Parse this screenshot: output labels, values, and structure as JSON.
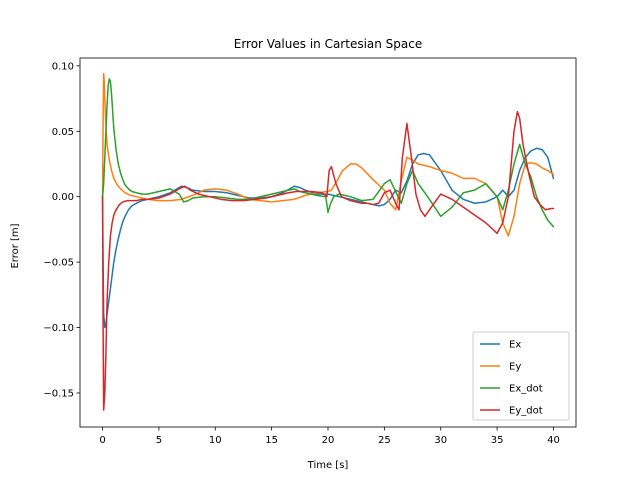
{
  "chart_data": {
    "type": "line",
    "title": "Error Values in Cartesian Space",
    "xlabel": "Time [s]",
    "ylabel": "Error [m]",
    "xlim": [
      -2,
      42
    ],
    "ylim": [
      -0.176,
      0.106
    ],
    "xticks": [
      0,
      5,
      10,
      15,
      20,
      25,
      30,
      35,
      40
    ],
    "xtick_labels": [
      "0",
      "5",
      "10",
      "15",
      "20",
      "25",
      "30",
      "35",
      "40"
    ],
    "yticks": [
      0.1,
      0.05,
      0.0,
      -0.05,
      -0.1,
      -0.15
    ],
    "ytick_labels": [
      "0.10",
      "0.05",
      "0.00",
      "−0.05",
      "−0.10",
      "−0.15"
    ],
    "grid": false,
    "legend_position": "bottom-right",
    "series": [
      {
        "name": "Ex",
        "color": "#1f77b4",
        "x": [
          0,
          0.05,
          0.1,
          0.2,
          0.3,
          0.4,
          0.55,
          0.7,
          0.85,
          1.0,
          1.2,
          1.4,
          1.6,
          1.8,
          2.0,
          2.3,
          2.6,
          3.0,
          3.5,
          4.0,
          5.0,
          6.0,
          7.0,
          7.5,
          8.0,
          9.0,
          10,
          11,
          12,
          13,
          14,
          15,
          16,
          17,
          17.5,
          18,
          19,
          20,
          21,
          22,
          23,
          24,
          24.5,
          25,
          25.5,
          26,
          26.5,
          27,
          27.5,
          28,
          28.5,
          29,
          29.5,
          30,
          31,
          32,
          33,
          34,
          35,
          35.5,
          36,
          36.5,
          37,
          37.5,
          38,
          38.5,
          39,
          39.5,
          40
        ],
        "y": [
          0.0,
          -0.05,
          -0.09,
          -0.1,
          -0.097,
          -0.09,
          -0.08,
          -0.07,
          -0.06,
          -0.05,
          -0.04,
          -0.032,
          -0.025,
          -0.019,
          -0.015,
          -0.01,
          -0.007,
          -0.005,
          -0.003,
          -0.002,
          0.0,
          0.003,
          0.008,
          0.007,
          0.005,
          0.004,
          0.004,
          0.003,
          0.001,
          -0.001,
          -0.001,
          0.0,
          0.003,
          0.008,
          0.007,
          0.005,
          0.002,
          0.002,
          0.0,
          -0.002,
          -0.004,
          -0.006,
          -0.007,
          -0.006,
          -0.002,
          0.005,
          0.003,
          0.012,
          0.025,
          0.032,
          0.033,
          0.032,
          0.026,
          0.02,
          0.005,
          -0.002,
          -0.005,
          -0.004,
          0.0,
          0.005,
          0.0,
          0.005,
          0.02,
          0.03,
          0.035,
          0.037,
          0.036,
          0.03,
          0.014
        ]
      },
      {
        "name": "Ey",
        "color": "#ff7f0e",
        "x": [
          0,
          0.05,
          0.1,
          0.15,
          0.2,
          0.3,
          0.4,
          0.6,
          0.8,
          1.0,
          1.3,
          1.6,
          2.0,
          2.5,
          3.0,
          4.0,
          5.0,
          6.0,
          7.0,
          8.0,
          9.0,
          10,
          11,
          12,
          13,
          14,
          15,
          16,
          17,
          18,
          19,
          20,
          20.3,
          20.8,
          21.3,
          22,
          22.5,
          23,
          24,
          25,
          25.5,
          26,
          26.5,
          27,
          27.5,
          28,
          29,
          30,
          31,
          32,
          33,
          34,
          35,
          35.5,
          36,
          36.5,
          37,
          37.5,
          38,
          38.5,
          39,
          39.5,
          40
        ],
        "y": [
          0.0,
          0.06,
          0.094,
          0.088,
          0.075,
          0.055,
          0.04,
          0.028,
          0.02,
          0.014,
          0.009,
          0.006,
          0.003,
          0.001,
          0.0,
          -0.002,
          -0.003,
          -0.003,
          -0.002,
          0.001,
          0.005,
          0.006,
          0.005,
          0.002,
          -0.002,
          -0.003,
          -0.004,
          -0.003,
          -0.002,
          0.001,
          0.003,
          0.004,
          0.005,
          0.012,
          0.02,
          0.025,
          0.025,
          0.022,
          0.013,
          0.005,
          -0.005,
          -0.01,
          0.012,
          0.03,
          0.028,
          0.025,
          0.023,
          0.02,
          0.018,
          0.014,
          0.014,
          0.01,
          0.0,
          -0.02,
          -0.03,
          -0.015,
          0.01,
          0.025,
          0.026,
          0.025,
          0.022,
          0.02,
          0.017
        ]
      },
      {
        "name": "Ex_dot",
        "color": "#2ca02c",
        "x": [
          0,
          0.1,
          0.2,
          0.3,
          0.4,
          0.5,
          0.6,
          0.7,
          0.8,
          0.9,
          1.0,
          1.2,
          1.4,
          1.6,
          1.8,
          2.0,
          2.3,
          2.6,
          3.0,
          3.5,
          4.0,
          5.0,
          6.0,
          6.8,
          7.2,
          7.6,
          8.0,
          9.0,
          10,
          11,
          12,
          13,
          14,
          15,
          16,
          17,
          17.5,
          18,
          19,
          19.8,
          20,
          20.2,
          20.5,
          21,
          22,
          23,
          24,
          25,
          25.5,
          26,
          26.5,
          27,
          27.5,
          28,
          29,
          30,
          31,
          32,
          33,
          34,
          35,
          35.5,
          36,
          36.5,
          37,
          37.5,
          38,
          38.5,
          39,
          39.5,
          40
        ],
        "y": [
          0.0,
          0.01,
          0.03,
          0.05,
          0.07,
          0.085,
          0.09,
          0.088,
          0.078,
          0.065,
          0.052,
          0.036,
          0.025,
          0.018,
          0.013,
          0.009,
          0.006,
          0.004,
          0.003,
          0.002,
          0.002,
          0.004,
          0.006,
          0.002,
          -0.004,
          -0.003,
          -0.001,
          0.0,
          0.0,
          -0.001,
          -0.002,
          -0.002,
          0.0,
          0.002,
          0.004,
          0.006,
          0.004,
          0.003,
          0.001,
          0.0,
          -0.012,
          -0.006,
          0.0,
          0.002,
          0.0,
          -0.003,
          -0.002,
          0.01,
          0.013,
          0.004,
          -0.005,
          0.01,
          0.02,
          0.01,
          -0.002,
          -0.015,
          -0.008,
          0.003,
          0.005,
          0.01,
          0.0,
          -0.01,
          0.005,
          0.025,
          0.04,
          0.025,
          0.015,
          0.0,
          -0.01,
          -0.018,
          -0.023
        ]
      },
      {
        "name": "Ey_dot",
        "color": "#d62728",
        "x": [
          0,
          0.05,
          0.1,
          0.2,
          0.3,
          0.4,
          0.55,
          0.7,
          0.85,
          1.0,
          1.2,
          1.5,
          1.8,
          2.2,
          2.6,
          3.0,
          3.5,
          4.0,
          5.0,
          6.0,
          6.8,
          7.3,
          7.8,
          8.5,
          9.5,
          10.5,
          11.5,
          12.5,
          13.5,
          14.5,
          15.5,
          16.5,
          17.2,
          17.8,
          18.5,
          19.5,
          19.9,
          20.1,
          20.3,
          20.7,
          21.2,
          22,
          23,
          23.5,
          24,
          24.5,
          25,
          25.5,
          26,
          26.3,
          26.6,
          27,
          27.4,
          27.8,
          28.2,
          28.6,
          29,
          29.5,
          30,
          31,
          32,
          33,
          34,
          35,
          35.5,
          36,
          36.5,
          36.8,
          37,
          37.3,
          37.8,
          38.3,
          38.8,
          39.3,
          39.8,
          40
        ],
        "y": [
          0.0,
          -0.1,
          -0.163,
          -0.15,
          -0.12,
          -0.08,
          -0.05,
          -0.03,
          -0.02,
          -0.014,
          -0.01,
          -0.006,
          -0.004,
          -0.003,
          -0.003,
          -0.003,
          -0.002,
          -0.002,
          -0.001,
          0.002,
          0.006,
          0.008,
          0.005,
          0.002,
          0.0,
          -0.002,
          -0.003,
          -0.003,
          -0.002,
          -0.001,
          0.001,
          0.003,
          0.004,
          0.004,
          0.004,
          0.003,
          0.0,
          0.02,
          0.023,
          0.01,
          0.0,
          -0.003,
          -0.005,
          -0.005,
          -0.006,
          -0.005,
          0.003,
          0.005,
          -0.005,
          -0.01,
          0.03,
          0.056,
          0.03,
          0.002,
          -0.01,
          -0.015,
          -0.01,
          -0.004,
          0.002,
          -0.002,
          -0.008,
          -0.014,
          -0.02,
          -0.028,
          -0.02,
          0.0,
          0.05,
          0.065,
          0.06,
          0.04,
          0.018,
          0.0,
          -0.006,
          -0.01,
          -0.009,
          -0.009
        ]
      }
    ]
  }
}
